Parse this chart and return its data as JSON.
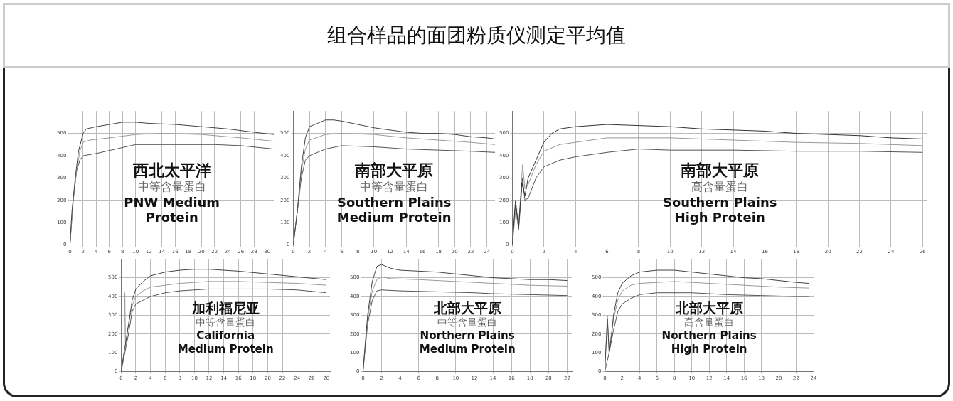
{
  "chart_data": [
    {
      "type": "other",
      "title": "组合样品的面团粉质仪测定平均值"
    },
    {
      "type": "line",
      "annotations": [
        "西北太平洋",
        "中等含量蛋白",
        "PNW Medium Protein"
      ],
      "xlim": [
        0,
        31
      ],
      "xticks": [
        0,
        2,
        4,
        6,
        8,
        10,
        12,
        14,
        16,
        18,
        20,
        22,
        24,
        26,
        28,
        30
      ],
      "ylim": [
        0,
        600
      ],
      "yticks": [
        0,
        100,
        200,
        300,
        400,
        500
      ],
      "grid": true,
      "marker": "none",
      "series": [
        {
          "color": "#444444",
          "x": [
            0,
            0.3,
            0.8,
            1.3,
            2,
            2.5,
            4,
            6,
            8,
            10,
            12,
            16,
            20,
            24,
            28,
            31
          ],
          "values": [
            0,
            150,
            300,
            420,
            500,
            520,
            530,
            540,
            550,
            550,
            545,
            540,
            530,
            520,
            505,
            495
          ]
        },
        {
          "color": "#999999",
          "x": [
            0,
            0.5,
            1,
            1.5,
            2,
            3,
            6,
            10,
            14,
            20,
            26,
            31
          ],
          "values": [
            0,
            200,
            330,
            420,
            460,
            470,
            480,
            495,
            500,
            495,
            480,
            465
          ]
        },
        {
          "color": "#555555",
          "x": [
            0,
            0.5,
            1,
            1.5,
            2,
            4,
            7,
            10,
            14,
            18,
            22,
            26,
            31
          ],
          "values": [
            0,
            200,
            330,
            380,
            400,
            410,
            430,
            450,
            450,
            450,
            450,
            445,
            430
          ]
        }
      ]
    },
    {
      "type": "line",
      "annotations": [
        "南部大平原",
        "中等含量蛋白",
        "Southern Plains Medium Protein"
      ],
      "xlim": [
        0,
        25
      ],
      "xticks": [
        0,
        2,
        4,
        6,
        8,
        10,
        12,
        14,
        16,
        18,
        20,
        22,
        24
      ],
      "ylim": [
        0,
        600
      ],
      "yticks": [
        0,
        100,
        200,
        300,
        400,
        500
      ],
      "grid": true,
      "marker": "none",
      "series": [
        {
          "color": "#444444",
          "x": [
            0,
            0.5,
            1,
            1.5,
            2,
            3,
            4,
            5,
            6,
            8,
            10,
            12,
            14,
            16,
            18,
            20,
            22,
            24,
            25
          ],
          "values": [
            0,
            150,
            350,
            480,
            530,
            545,
            560,
            560,
            555,
            540,
            525,
            515,
            505,
            500,
            500,
            495,
            485,
            480,
            475
          ]
        },
        {
          "color": "#999999",
          "x": [
            0,
            0.5,
            1,
            1.5,
            2,
            4,
            6,
            10,
            14,
            18,
            22,
            25
          ],
          "values": [
            0,
            150,
            330,
            430,
            470,
            495,
            500,
            495,
            480,
            470,
            460,
            450
          ]
        },
        {
          "color": "#555555",
          "x": [
            0,
            0.5,
            1,
            1.5,
            2,
            4,
            6,
            10,
            14,
            18,
            22,
            25
          ],
          "values": [
            0,
            150,
            300,
            380,
            400,
            430,
            445,
            440,
            430,
            425,
            420,
            415
          ]
        }
      ]
    },
    {
      "type": "line",
      "annotations": [
        "南部大平原",
        "高含量蛋白",
        "Southern Plains High Protein"
      ],
      "xlim": [
        0,
        26.3
      ],
      "xticks": [
        0,
        2,
        4,
        6,
        8,
        10,
        12,
        14,
        16,
        18,
        20,
        22,
        24,
        26
      ],
      "ylim": [
        0,
        600
      ],
      "yticks": [
        0,
        100,
        200,
        300,
        400,
        500
      ],
      "grid": true,
      "marker": "none",
      "series": [
        {
          "color": "#333333",
          "x": [
            0,
            0.2,
            0.4,
            0.6,
            0.8,
            1,
            1.5,
            2,
            2.5,
            3,
            4,
            6,
            8,
            10,
            12,
            14,
            16,
            18,
            20,
            22,
            24,
            26
          ],
          "values": [
            0,
            200,
            80,
            280,
            220,
            300,
            380,
            460,
            500,
            520,
            530,
            540,
            535,
            530,
            520,
            515,
            510,
            500,
            495,
            490,
            480,
            475
          ]
        },
        {
          "color": "#999999",
          "x": [
            0,
            0.2,
            0.4,
            0.65,
            0.8,
            1,
            1.5,
            2,
            3,
            4,
            6,
            10,
            14,
            18,
            22,
            26
          ],
          "values": [
            0,
            150,
            80,
            360,
            250,
            270,
            360,
            420,
            450,
            460,
            480,
            480,
            470,
            460,
            455,
            445
          ]
        },
        {
          "color": "#555555",
          "x": [
            0,
            0.2,
            0.4,
            0.65,
            0.8,
            1,
            1.5,
            2,
            3,
            4,
            6,
            8,
            10,
            14,
            18,
            22,
            26
          ],
          "values": [
            0,
            180,
            70,
            300,
            200,
            210,
            300,
            350,
            380,
            395,
            415,
            430,
            425,
            425,
            420,
            420,
            415
          ]
        }
      ]
    },
    {
      "type": "line",
      "annotations": [
        "加利福尼亚",
        "中等含量蛋白",
        "California Medium Protein"
      ],
      "xlim": [
        0,
        28.5
      ],
      "xticks": [
        0,
        2,
        4,
        6,
        8,
        10,
        12,
        14,
        16,
        18,
        20,
        22,
        24,
        26,
        28
      ],
      "ylim": [
        0,
        600
      ],
      "yticks": [
        0,
        100,
        200,
        300,
        400,
        500
      ],
      "grid": true,
      "marker": "none",
      "series": [
        {
          "color": "#444444",
          "x": [
            0,
            0.3,
            0.6,
            1,
            1.5,
            2,
            3,
            4,
            6,
            8,
            10,
            12,
            16,
            20,
            24,
            28
          ],
          "values": [
            0,
            80,
            150,
            250,
            380,
            440,
            480,
            510,
            530,
            540,
            545,
            545,
            535,
            520,
            505,
            490
          ]
        },
        {
          "color": "#999999",
          "x": [
            0,
            0.4,
            0.5,
            0.6,
            1,
            1.5,
            2,
            3,
            4,
            8,
            12,
            16,
            20,
            24,
            28
          ],
          "values": [
            0,
            100,
            420,
            130,
            250,
            350,
            400,
            430,
            450,
            470,
            480,
            480,
            475,
            470,
            460
          ]
        },
        {
          "color": "#555555",
          "x": [
            0,
            0.5,
            1,
            1.5,
            2,
            3,
            4,
            6,
            8,
            12,
            16,
            20,
            24,
            28
          ],
          "values": [
            0,
            100,
            200,
            320,
            360,
            380,
            400,
            420,
            430,
            440,
            440,
            440,
            435,
            420
          ]
        }
      ]
    },
    {
      "type": "line",
      "annotations": [
        "北部大平原",
        "中等含量蛋白",
        "Northern Plains Medium Protein"
      ],
      "xlim": [
        0,
        22.5
      ],
      "xticks": [
        0,
        2,
        4,
        6,
        8,
        10,
        12,
        14,
        16,
        18,
        20,
        22
      ],
      "ylim": [
        0,
        600
      ],
      "yticks": [
        0,
        100,
        200,
        300,
        400,
        500
      ],
      "grid": true,
      "marker": "none",
      "series": [
        {
          "color": "#444444",
          "x": [
            0,
            0.5,
            1,
            1.5,
            2,
            3,
            4,
            6,
            8,
            10,
            12,
            14,
            16,
            18,
            20,
            22
          ],
          "values": [
            0,
            300,
            480,
            560,
            570,
            550,
            540,
            535,
            530,
            520,
            510,
            500,
            495,
            490,
            490,
            485
          ]
        },
        {
          "color": "#999999",
          "x": [
            0,
            0.5,
            1,
            1.5,
            2,
            3,
            6,
            10,
            14,
            18,
            22
          ],
          "values": [
            0,
            280,
            430,
            490,
            505,
            495,
            490,
            480,
            470,
            460,
            455
          ]
        },
        {
          "color": "#555555",
          "x": [
            0,
            0.5,
            1,
            1.5,
            2,
            4,
            8,
            12,
            14,
            18,
            22
          ],
          "values": [
            0,
            250,
            380,
            430,
            435,
            430,
            425,
            420,
            415,
            410,
            405
          ]
        }
      ]
    },
    {
      "type": "line",
      "annotations": [
        "北部大平原",
        "高含量蛋白",
        "Northern Plains High Protein"
      ],
      "xlim": [
        0,
        24
      ],
      "xticks": [
        0,
        2,
        4,
        6,
        8,
        10,
        12,
        14,
        16,
        18,
        20,
        22,
        24
      ],
      "ylim": [
        0,
        600
      ],
      "yticks": [
        0,
        100,
        200,
        300,
        400,
        500
      ],
      "grid": true,
      "marker": "none",
      "series": [
        {
          "color": "#444444",
          "x": [
            0,
            0.3,
            0.5,
            0.8,
            1,
            1.5,
            2,
            3,
            4,
            6,
            8,
            10,
            14,
            16,
            18,
            20,
            22,
            23.5
          ],
          "values": [
            0,
            280,
            100,
            200,
            300,
            420,
            470,
            510,
            530,
            540,
            540,
            530,
            510,
            500,
            495,
            485,
            475,
            470
          ]
        },
        {
          "color": "#999999",
          "x": [
            0,
            0.3,
            0.5,
            1,
            1.5,
            2,
            3,
            4,
            8,
            12,
            16,
            20,
            23.5
          ],
          "values": [
            0,
            300,
            120,
            280,
            380,
            430,
            460,
            470,
            480,
            470,
            460,
            450,
            445
          ]
        },
        {
          "color": "#555555",
          "x": [
            0,
            0.5,
            1,
            1.5,
            2,
            3,
            4,
            6,
            10,
            14,
            18,
            22,
            23.5
          ],
          "values": [
            0,
            100,
            220,
            320,
            360,
            390,
            410,
            420,
            420,
            410,
            405,
            400,
            400
          ]
        }
      ]
    }
  ]
}
